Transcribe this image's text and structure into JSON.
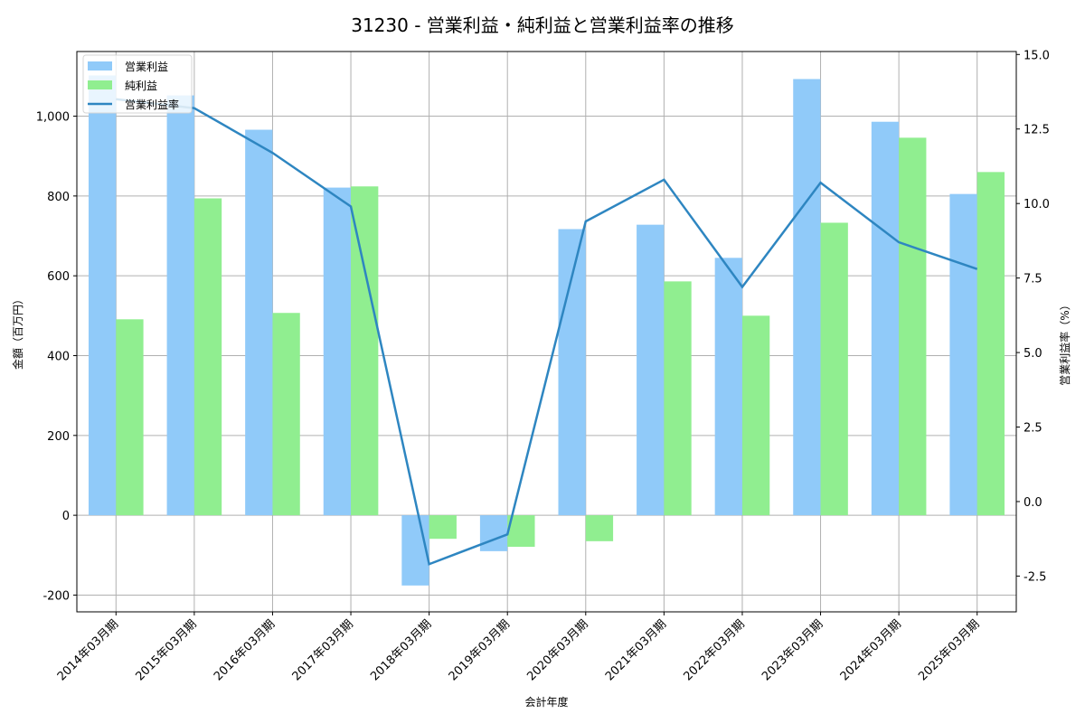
{
  "chart_data": {
    "type": "bar",
    "title": "31230 - 営業利益・純利益と営業利益率の推移",
    "xlabel": "会計年度",
    "ylabel": "金額（百万円）",
    "y2label": "営業利益率（%）",
    "categories": [
      "2014年03月期",
      "2015年03月期",
      "2016年03月期",
      "2017年03月期",
      "2018年03月期",
      "2019年03月期",
      "2020年03月期",
      "2021年03月期",
      "2022年03月期",
      "2023年03月期",
      "2024年03月期",
      "2025年03月期"
    ],
    "series": [
      {
        "name": "営業利益",
        "type": "bar",
        "axis": "left",
        "color": "#90CAF9",
        "values": [
          1102,
          1052,
          966,
          821,
          -176,
          -90,
          717,
          728,
          645,
          1093,
          986,
          805
        ]
      },
      {
        "name": "純利益",
        "type": "bar",
        "axis": "left",
        "color": "#90EE90",
        "values": [
          491,
          794,
          507,
          824,
          -59,
          -79,
          -65,
          586,
          500,
          733,
          946,
          860
        ]
      },
      {
        "name": "営業利益率",
        "type": "line",
        "axis": "right",
        "color": "#2E86C1",
        "values": [
          13.5,
          13.2,
          11.7,
          9.9,
          -2.1,
          -1.1,
          9.4,
          10.8,
          7.2,
          10.7,
          8.7,
          7.8
        ]
      }
    ],
    "ylim": [
      -242,
      1162
    ],
    "y2lim": [
      -3.7,
      15.1
    ],
    "yticks": [
      -200,
      0,
      200,
      400,
      600,
      800,
      1000
    ],
    "ytick_labels": [
      "-200",
      "0",
      "200",
      "400",
      "600",
      "800",
      "1,000"
    ],
    "y2ticks": [
      -2.5,
      0.0,
      2.5,
      5.0,
      7.5,
      10.0,
      12.5,
      15.0
    ],
    "y2tick_labels": [
      "-2.5",
      "0.0",
      "2.5",
      "5.0",
      "7.5",
      "10.0",
      "12.5",
      "15.0"
    ],
    "grid": true,
    "legend_position": "upper left"
  }
}
